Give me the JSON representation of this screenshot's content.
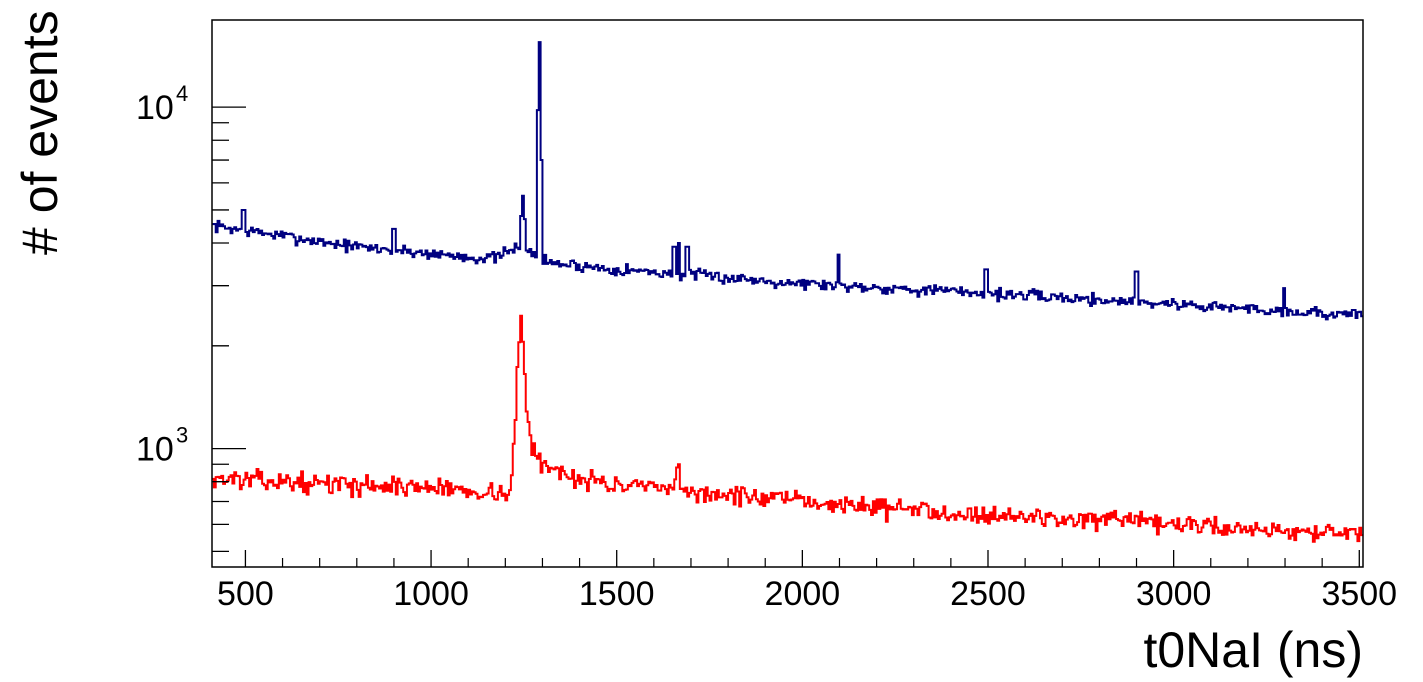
{
  "chart_data": {
    "type": "line",
    "style": "step-histogram",
    "xlabel": "t0NaI (ns)",
    "ylabel": "# of events",
    "xlim": [
      410,
      3510
    ],
    "ylim": [
      450,
      18000
    ],
    "yscale": "log",
    "x_ticks": [
      500,
      1000,
      1500,
      2000,
      2500,
      3000,
      3500
    ],
    "y_tick_labels": [
      {
        "value": 1000,
        "base": "10",
        "exp": "3"
      },
      {
        "value": 10000,
        "base": "10",
        "exp": "4"
      }
    ],
    "grid": false,
    "bin_width": 5,
    "series": [
      {
        "color": "#000080",
        "base": [
          [
            410,
            4500
          ],
          [
            800,
            3900
          ],
          [
            1150,
            3600
          ],
          [
            1180,
            3650
          ],
          [
            1220,
            3800
          ],
          [
            1240,
            3950
          ],
          [
            1270,
            3700
          ],
          [
            1320,
            3500
          ],
          [
            1500,
            3350
          ],
          [
            2000,
            3050
          ],
          [
            2500,
            2850
          ],
          [
            3000,
            2650
          ],
          [
            3510,
            2450
          ]
        ],
        "peaks": [
          {
            "x": 495,
            "y": 5000
          },
          {
            "x": 900,
            "y": 4400
          },
          {
            "x": 1243,
            "y": 4800
          },
          {
            "x": 1248,
            "y": 5500
          },
          {
            "x": 1253,
            "y": 4700
          },
          {
            "x": 1288,
            "y": 9800
          },
          {
            "x": 1293,
            "y": 15500
          },
          {
            "x": 1298,
            "y": 7000
          },
          {
            "x": 1655,
            "y": 3900
          },
          {
            "x": 1668,
            "y": 4000
          },
          {
            "x": 1690,
            "y": 3900
          },
          {
            "x": 2098,
            "y": 3700
          },
          {
            "x": 2495,
            "y": 3350
          },
          {
            "x": 2900,
            "y": 3300
          },
          {
            "x": 3298,
            "y": 2950
          }
        ],
        "noise": 0.028,
        "seed": 7
      },
      {
        "color": "#ff0000",
        "base": [
          [
            410,
            820
          ],
          [
            700,
            790
          ],
          [
            1000,
            770
          ],
          [
            1200,
            740
          ],
          [
            1215,
            760
          ],
          [
            1225,
            1100
          ],
          [
            1233,
            1700
          ],
          [
            1240,
            2300
          ],
          [
            1248,
            2000
          ],
          [
            1258,
            1300
          ],
          [
            1270,
            1000
          ],
          [
            1300,
            900
          ],
          [
            1350,
            850
          ],
          [
            1500,
            780
          ],
          [
            2000,
            700
          ],
          [
            2500,
            640
          ],
          [
            3000,
            600
          ],
          [
            3510,
            560
          ]
        ],
        "peaks": [
          {
            "x": 1243,
            "y": 2450
          },
          {
            "x": 1663,
            "y": 880
          },
          {
            "x": 1668,
            "y": 900
          }
        ],
        "noise": 0.045,
        "seed": 13
      }
    ]
  }
}
